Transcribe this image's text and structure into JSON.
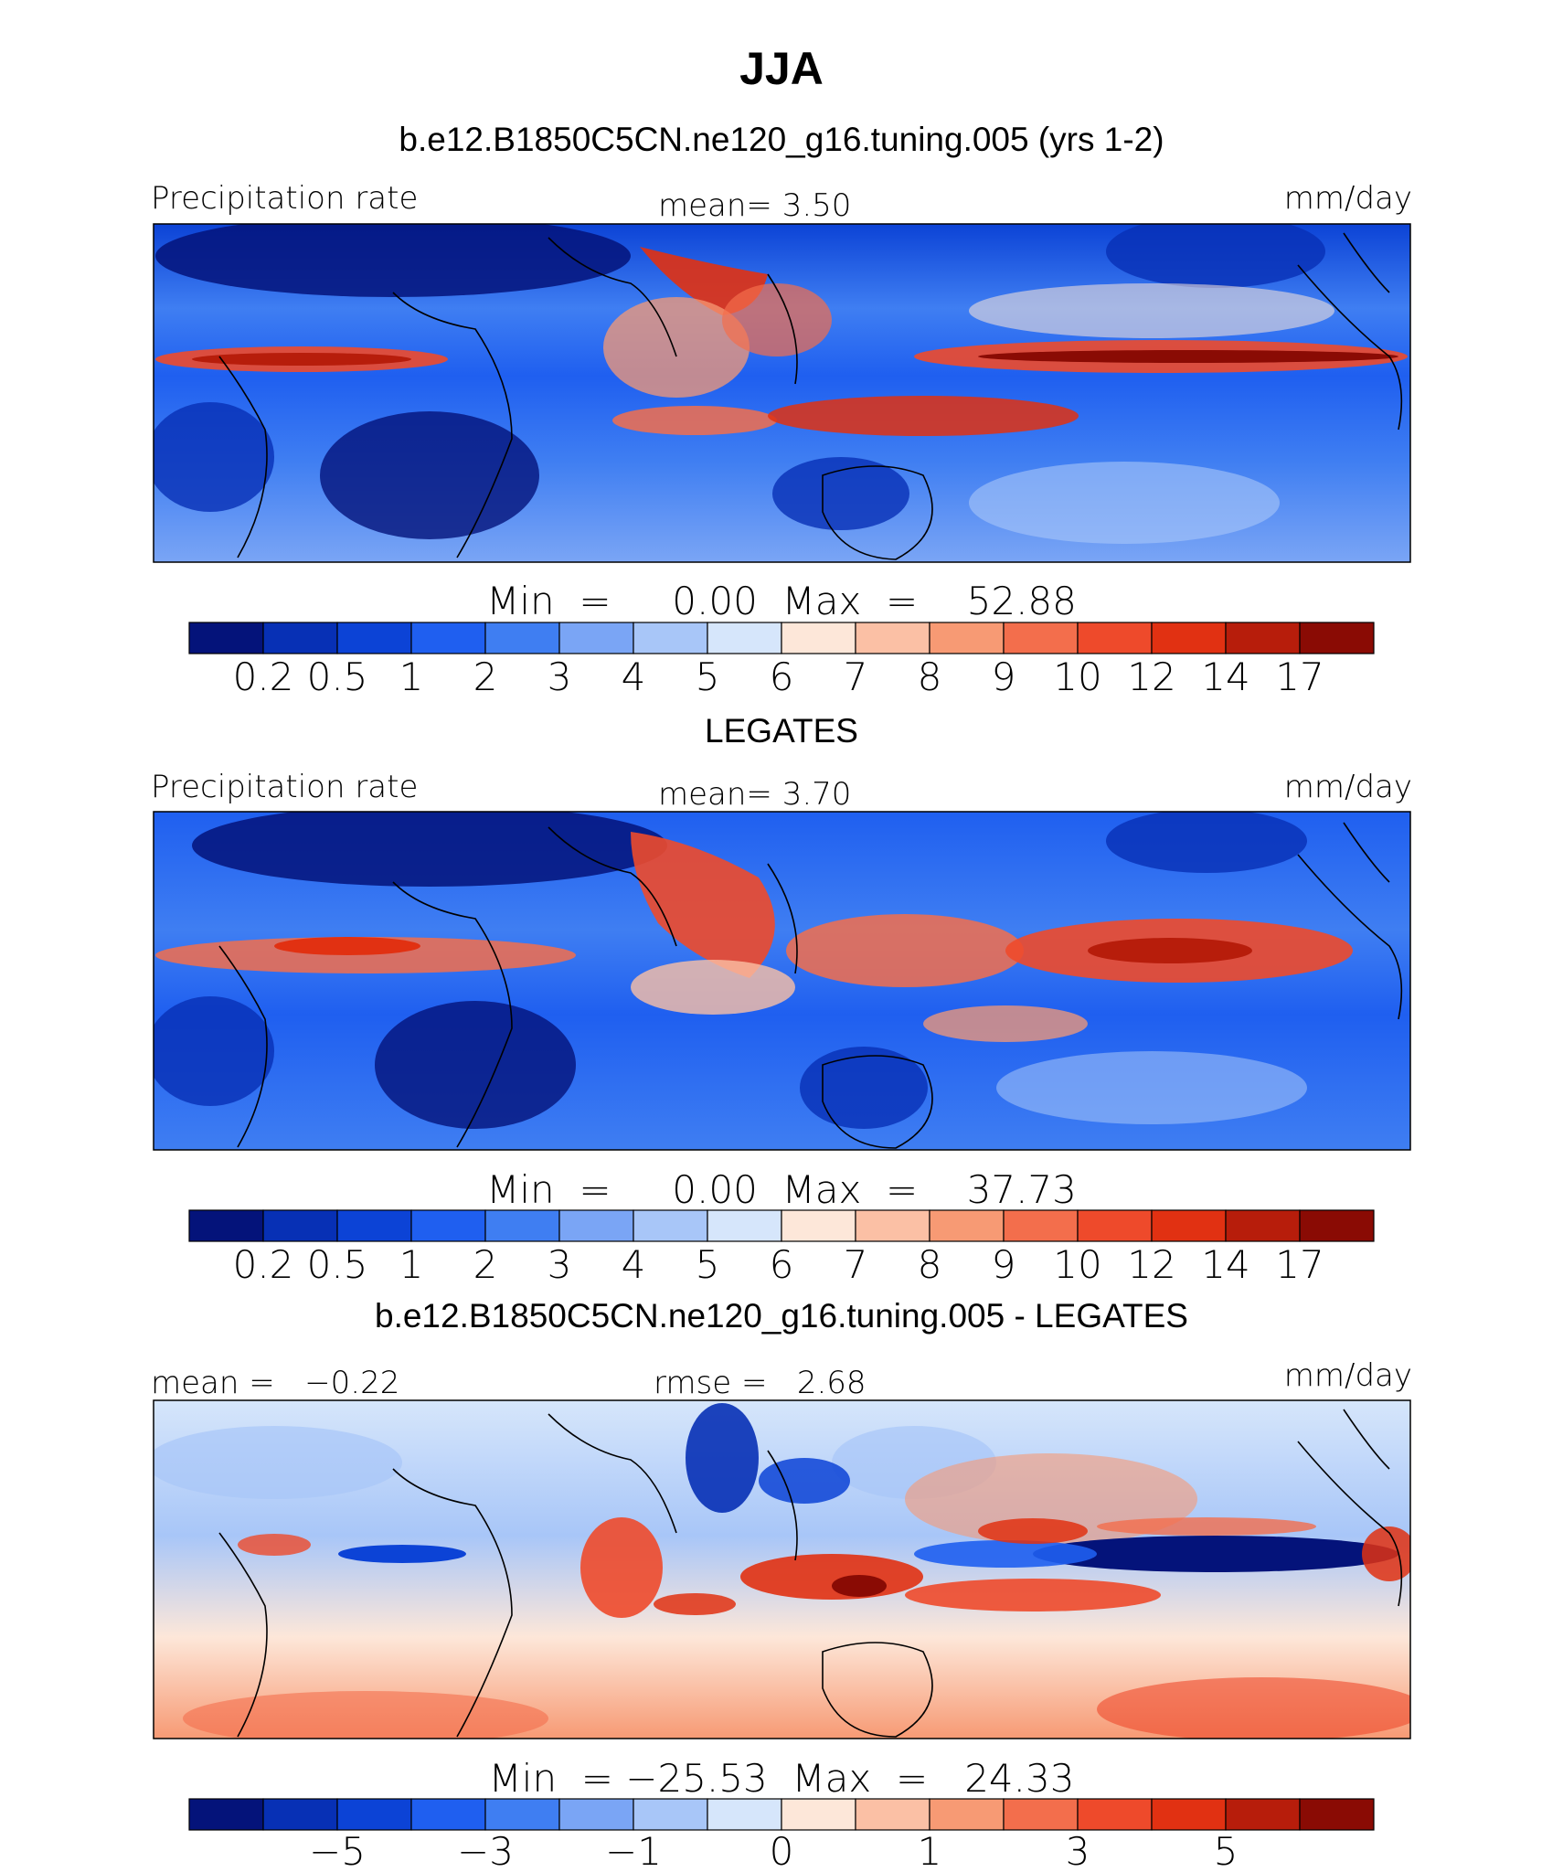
{
  "figure": {
    "title": "JJA"
  },
  "colors": {
    "abs_scale": [
      "#04137a",
      "#0730b5",
      "#0c43d6",
      "#1f5ff0",
      "#3f7ef2",
      "#7aa5f5",
      "#a8c6f8",
      "#d6e6fb",
      "#fde7d9",
      "#fbc0a5",
      "#f79a74",
      "#f36e4c",
      "#ee4a2b",
      "#e13112",
      "#b71d0b",
      "#8a0b04"
    ],
    "diff_scale": [
      "#04137a",
      "#0730b5",
      "#0c43d6",
      "#1f5ff0",
      "#3f7ef2",
      "#7aa5f5",
      "#a8c6f8",
      "#d6e6fb",
      "#fde7d9",
      "#fbc0a5",
      "#f79a74",
      "#f36e4c",
      "#ee4a2b",
      "#e13112",
      "#b71d0b",
      "#8a0b04"
    ]
  },
  "chart_data": [
    {
      "type": "heatmap",
      "title": "b.e12.B1850C5CN.ne120_g16.tuning.005 (yrs 1-2)",
      "left_label": "Precipitation rate",
      "center_label": "mean=   3.50",
      "right_label": "mm/day",
      "stats": "Min  =     0.00  Max  =    52.88",
      "colorbar_ticks": [
        "0.2",
        "0.5",
        "1",
        "2",
        "3",
        "4",
        "5",
        "6",
        "7",
        "8",
        "9",
        "10",
        "12",
        "14",
        "17"
      ],
      "min": 0.0,
      "max": 52.88,
      "mean": 3.5
    },
    {
      "type": "heatmap",
      "title": "LEGATES",
      "left_label": "Precipitation rate",
      "center_label": "mean=   3.70",
      "right_label": "mm/day",
      "stats": "Min  =     0.00  Max  =    37.73",
      "colorbar_ticks": [
        "0.2",
        "0.5",
        "1",
        "2",
        "3",
        "4",
        "5",
        "6",
        "7",
        "8",
        "9",
        "10",
        "12",
        "14",
        "17"
      ],
      "min": 0.0,
      "max": 37.73,
      "mean": 3.7
    },
    {
      "type": "heatmap",
      "title": "b.e12.B1850C5CN.ne120_g16.tuning.005 - LEGATES",
      "left_label": "mean =   −0.22",
      "center_label": "rmse =   2.68",
      "right_label": "mm/day",
      "stats": "Min  = −25.53  Max  =   24.33",
      "colorbar_ticks": [
        "−5",
        "−3",
        "−1",
        "0",
        "1",
        "3",
        "5"
      ],
      "min": -25.53,
      "max": 24.33,
      "mean": -0.22,
      "rmse": 2.68
    }
  ]
}
